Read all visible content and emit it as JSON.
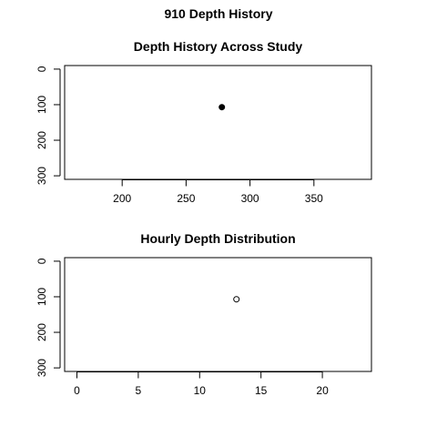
{
  "page_title": "910 Depth History",
  "chart_data": [
    {
      "type": "scatter",
      "title": "Depth History Across Study",
      "xlabel": "",
      "ylabel": "",
      "xlim": [
        155,
        395
      ],
      "ylim": [
        310,
        -10
      ],
      "y_reversed": true,
      "x_ticks": [
        200,
        250,
        300,
        350
      ],
      "y_ticks": [
        0,
        100,
        200,
        300
      ],
      "marker": "filled-circle",
      "points": [
        {
          "x": 278,
          "y": 107
        }
      ]
    },
    {
      "type": "scatter",
      "title": "Hourly Depth Distribution",
      "xlabel": "",
      "ylabel": "",
      "xlim": [
        -1,
        24
      ],
      "ylim": [
        310,
        -10
      ],
      "y_reversed": true,
      "x_ticks": [
        0,
        5,
        10,
        15,
        20
      ],
      "y_ticks": [
        0,
        100,
        200,
        300
      ],
      "marker": "open-circle",
      "points": [
        {
          "x": 13,
          "y": 107
        }
      ]
    }
  ]
}
